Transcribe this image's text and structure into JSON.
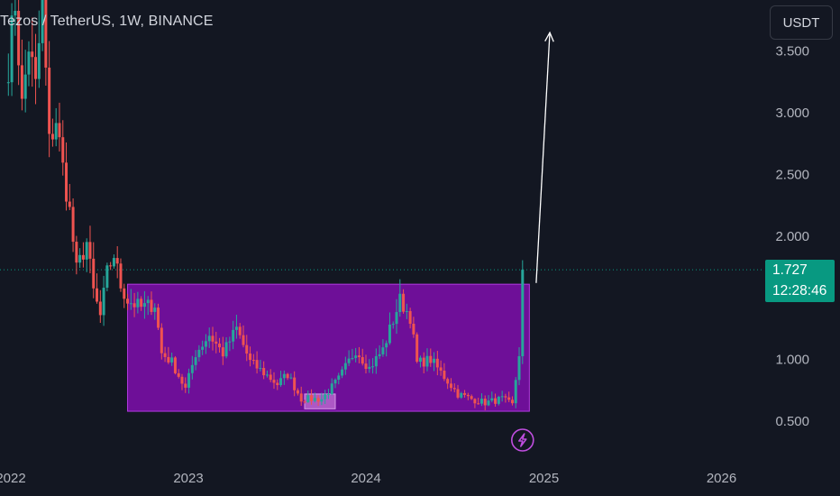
{
  "header": {
    "symbol_title": "Tezos / TetherUS, 1W, BINANCE",
    "currency_button": "USDT"
  },
  "last_price": {
    "value": "1.727",
    "countdown": "12:28:46",
    "color": "#089981"
  },
  "colors": {
    "background": "#131722",
    "up_candle": "#26a69a",
    "down_candle": "#ef5350",
    "range_box_fill": "#7b0fa8",
    "range_box_border": "#b13ae0",
    "arrow": "#ffffff",
    "axis_text": "#b2b5be",
    "lightning_icon": "#c04ee0"
  },
  "icons": {
    "event_marker": "lightning-icon"
  },
  "chart_data": {
    "type": "candlestick",
    "symbol": "Tezos / TetherUS",
    "interval": "1W",
    "exchange": "BINANCE",
    "y_axis": {
      "ticks": [
        "0.500",
        "1.000",
        "1.500",
        "2.000",
        "2.500",
        "3.000",
        "3.500"
      ],
      "min": 0.3,
      "max": 3.72
    },
    "x_axis": {
      "ticks": [
        "2022",
        "2023",
        "2024",
        "2025",
        "2026"
      ]
    },
    "current_price": 1.727,
    "range_box": {
      "from_date": "2022-08-29",
      "to_date": "2024-12-02",
      "low": 0.58,
      "high": 1.61
    },
    "projection_arrow": {
      "from_date": "2024-12-16",
      "from_price": 1.62,
      "to_date": "2025-01-13",
      "to_price": 3.65
    },
    "highlight_zone": {
      "from_date": "2023-08-28",
      "to_date": "2023-10-30",
      "low": 0.6,
      "high": 0.72
    },
    "event_marker_date": "2024-11-18",
    "close_path": [
      [
        "2021-12-27",
        3.4
      ],
      [
        "2022-01-10",
        3.9
      ],
      [
        "2022-01-24",
        3.05
      ],
      [
        "2022-02-07",
        3.55
      ],
      [
        "2022-02-21",
        3.2
      ],
      [
        "2022-03-07",
        3.9
      ],
      [
        "2022-03-21",
        2.75
      ],
      [
        "2022-04-04",
        2.95
      ],
      [
        "2022-04-18",
        2.55
      ],
      [
        "2022-05-02",
        2.2
      ],
      [
        "2022-05-16",
        1.72
      ],
      [
        "2022-06-06",
        1.95
      ],
      [
        "2022-06-20",
        1.55
      ],
      [
        "2022-07-04",
        1.35
      ],
      [
        "2022-07-18",
        1.7
      ],
      [
        "2022-08-01",
        1.85
      ],
      [
        "2022-08-15",
        1.6
      ],
      [
        "2022-08-29",
        1.48
      ],
      [
        "2022-09-26",
        1.42
      ],
      [
        "2022-10-24",
        1.45
      ],
      [
        "2022-11-07",
        1.05
      ],
      [
        "2022-11-28",
        0.98
      ],
      [
        "2022-12-26",
        0.76
      ],
      [
        "2023-01-16",
        1.05
      ],
      [
        "2023-02-13",
        1.2
      ],
      [
        "2023-03-13",
        1.05
      ],
      [
        "2023-04-10",
        1.25
      ],
      [
        "2023-05-08",
        0.98
      ],
      [
        "2023-06-12",
        0.87
      ],
      [
        "2023-07-03",
        0.8
      ],
      [
        "2023-07-24",
        0.88
      ],
      [
        "2023-08-21",
        0.68
      ],
      [
        "2023-10-02",
        0.68
      ],
      [
        "2023-11-06",
        0.84
      ],
      [
        "2023-12-11",
        1.08
      ],
      [
        "2024-01-08",
        0.93
      ],
      [
        "2024-02-05",
        1.08
      ],
      [
        "2024-03-11",
        1.48
      ],
      [
        "2024-04-01",
        1.35
      ],
      [
        "2024-04-15",
        0.97
      ],
      [
        "2024-05-13",
        1.0
      ],
      [
        "2024-06-10",
        0.86
      ],
      [
        "2024-07-08",
        0.72
      ],
      [
        "2024-08-05",
        0.68
      ],
      [
        "2024-09-02",
        0.65
      ],
      [
        "2024-10-07",
        0.68
      ],
      [
        "2024-10-28",
        0.63
      ],
      [
        "2024-11-11",
        1.05
      ],
      [
        "2024-11-18",
        1.73
      ]
    ]
  }
}
